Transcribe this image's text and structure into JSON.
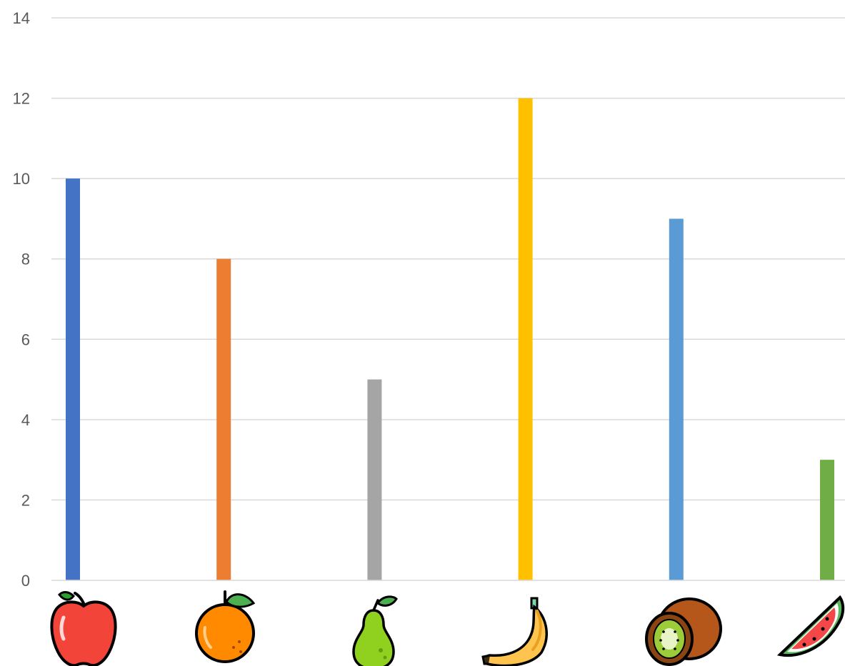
{
  "chart_data": {
    "type": "bar",
    "title": "",
    "xlabel": "",
    "ylabel": "",
    "ylim": [
      0,
      14
    ],
    "yticks": [
      "0",
      "2",
      "4",
      "6",
      "8",
      "10",
      "12",
      "14"
    ],
    "grid": true,
    "legend": "none",
    "categories": [
      "apple",
      "orange",
      "pear",
      "banana",
      "kiwi",
      "watermelon"
    ],
    "category_icons": [
      "apple-icon",
      "orange-icon",
      "pear-icon",
      "banana-icon",
      "kiwi-icon",
      "watermelon-icon"
    ],
    "values": [
      10,
      8,
      5,
      12,
      9,
      3
    ],
    "colors": [
      "#4472C4",
      "#ED7D31",
      "#A5A5A5",
      "#FFC000",
      "#5B9BD5",
      "#70AD47"
    ]
  }
}
